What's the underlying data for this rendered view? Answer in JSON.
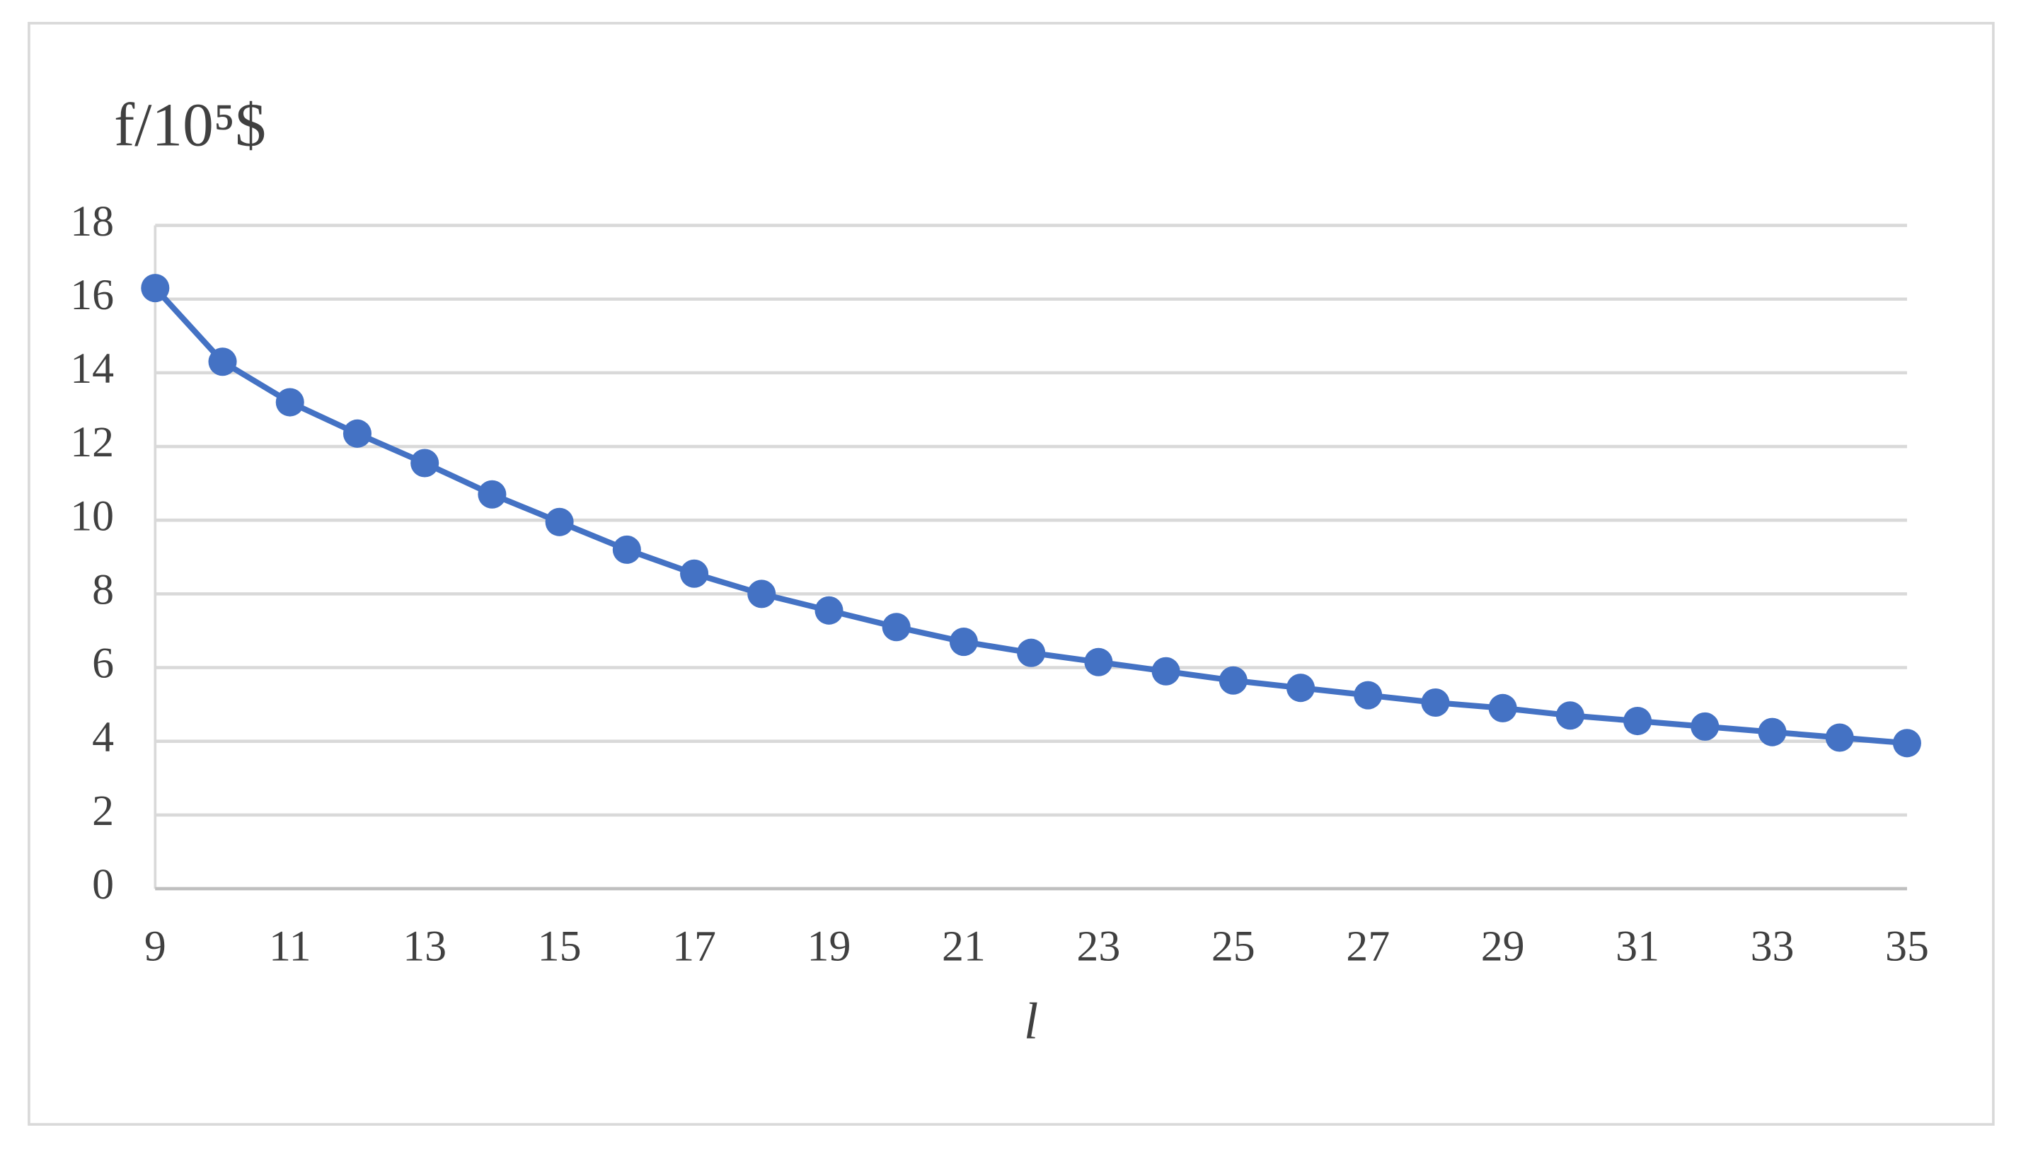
{
  "chart_data": {
    "type": "line",
    "ylabel": "f/10⁵$",
    "xlabel": "l",
    "x": [
      9,
      10,
      11,
      12,
      13,
      14,
      15,
      16,
      17,
      18,
      19,
      20,
      21,
      22,
      23,
      24,
      25,
      26,
      27,
      28,
      29,
      30,
      31,
      32,
      33,
      34,
      35
    ],
    "series": [
      {
        "color": "#4472c4",
        "values": [
          16.3,
          14.3,
          13.2,
          12.35,
          11.55,
          10.7,
          9.95,
          9.2,
          8.55,
          8.0,
          7.55,
          7.1,
          6.7,
          6.4,
          6.15,
          5.9,
          5.65,
          5.45,
          5.25,
          5.05,
          4.9,
          4.7,
          4.55,
          4.4,
          4.25,
          4.1,
          3.95
        ]
      }
    ],
    "xlim": [
      9,
      35
    ],
    "xticks": [
      9,
      11,
      13,
      15,
      17,
      19,
      21,
      23,
      25,
      27,
      29,
      31,
      33,
      35
    ],
    "ylim": [
      0,
      18
    ],
    "yticks": [
      0,
      2,
      4,
      6,
      8,
      10,
      12,
      14,
      16,
      18
    ],
    "grid": true,
    "markers": true
  }
}
